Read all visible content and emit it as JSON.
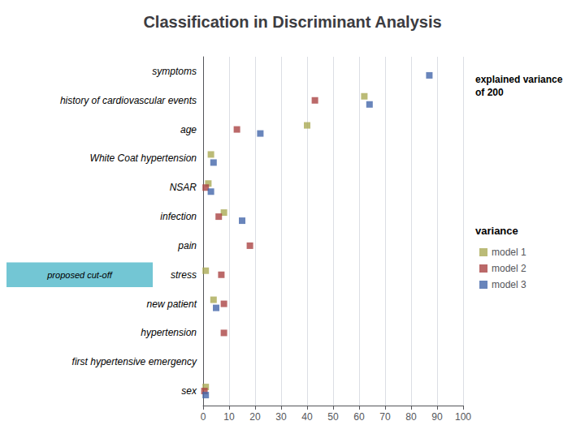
{
  "chart_data": {
    "type": "scatter",
    "title": "Classification in Discriminant Analysis",
    "orientation": "horizontal",
    "categories": [
      "symptoms",
      "history of cardiovascular events",
      "age",
      "White Coat hypertension",
      "NSAR",
      "infection",
      "pain",
      "stress",
      "new patient",
      "hypertension",
      "first hypertensive emergency",
      "sex"
    ],
    "series": [
      {
        "name": "model 1",
        "color": "#AAAA55",
        "marker": "square",
        "values": [
          null,
          62,
          40,
          3,
          2,
          8,
          null,
          1,
          4,
          null,
          null,
          1
        ]
      },
      {
        "name": "model 2",
        "color": "#AA4444",
        "marker": "square",
        "values": [
          null,
          43,
          13,
          null,
          1,
          6,
          18,
          7,
          8,
          8,
          null,
          0.5
        ]
      },
      {
        "name": "model 3",
        "color": "#4466AA",
        "marker": "square",
        "values": [
          87,
          64,
          22,
          4,
          3,
          15,
          null,
          null,
          5,
          null,
          null,
          1
        ]
      }
    ],
    "xlim": [
      0,
      100
    ],
    "xticks": [
      0,
      10,
      20,
      30,
      40,
      50,
      60,
      70,
      80,
      90,
      100
    ],
    "grid": true,
    "legend": "right",
    "legend_title": "variance",
    "annotations": [
      {
        "text": "explained variance"
      },
      {
        "text": "of 200"
      },
      {
        "text": "proposed cut-off",
        "category": "stress",
        "color": "#5BBCCC"
      }
    ]
  }
}
